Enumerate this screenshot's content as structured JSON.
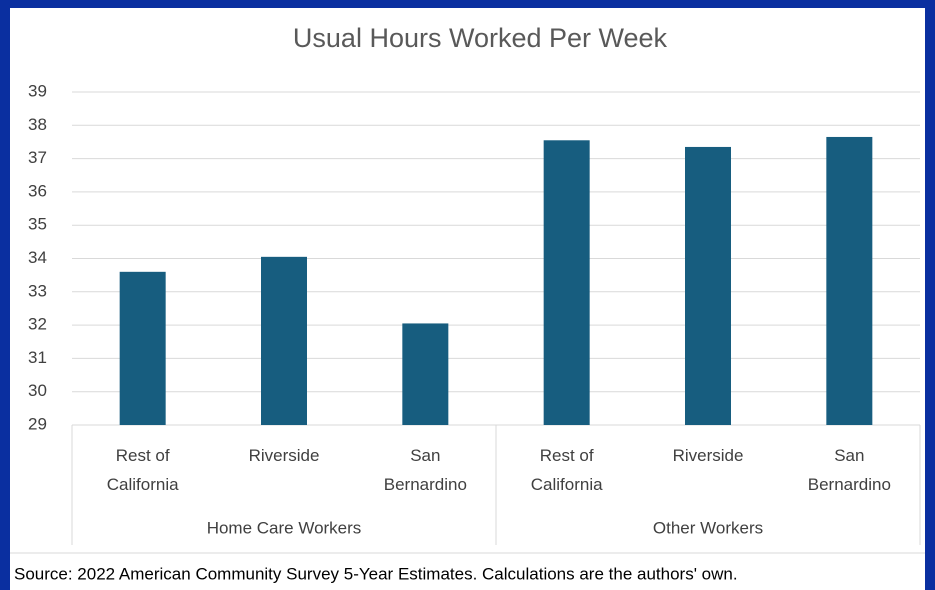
{
  "chart_data": {
    "type": "bar",
    "title": "Usual Hours Worked Per Week",
    "categories": [
      "Rest of California",
      "Riverside",
      "San Bernardino",
      "Rest of California",
      "Riverside",
      "San Bernardino"
    ],
    "groups": [
      {
        "name": "Home Care Workers",
        "size": 3
      },
      {
        "name": "Other Workers",
        "size": 3
      }
    ],
    "values": [
      33.6,
      34.05,
      32.05,
      37.55,
      37.35,
      37.65
    ],
    "color": "#175d7f",
    "ylim": [
      29,
      39
    ],
    "yticks": [
      29,
      30,
      31,
      32,
      33,
      34,
      35,
      36,
      37,
      38,
      39
    ],
    "grid": true,
    "source": "Source: 2022 American Community Survey 5-Year Estimates. Calculations are the authors' own."
  }
}
